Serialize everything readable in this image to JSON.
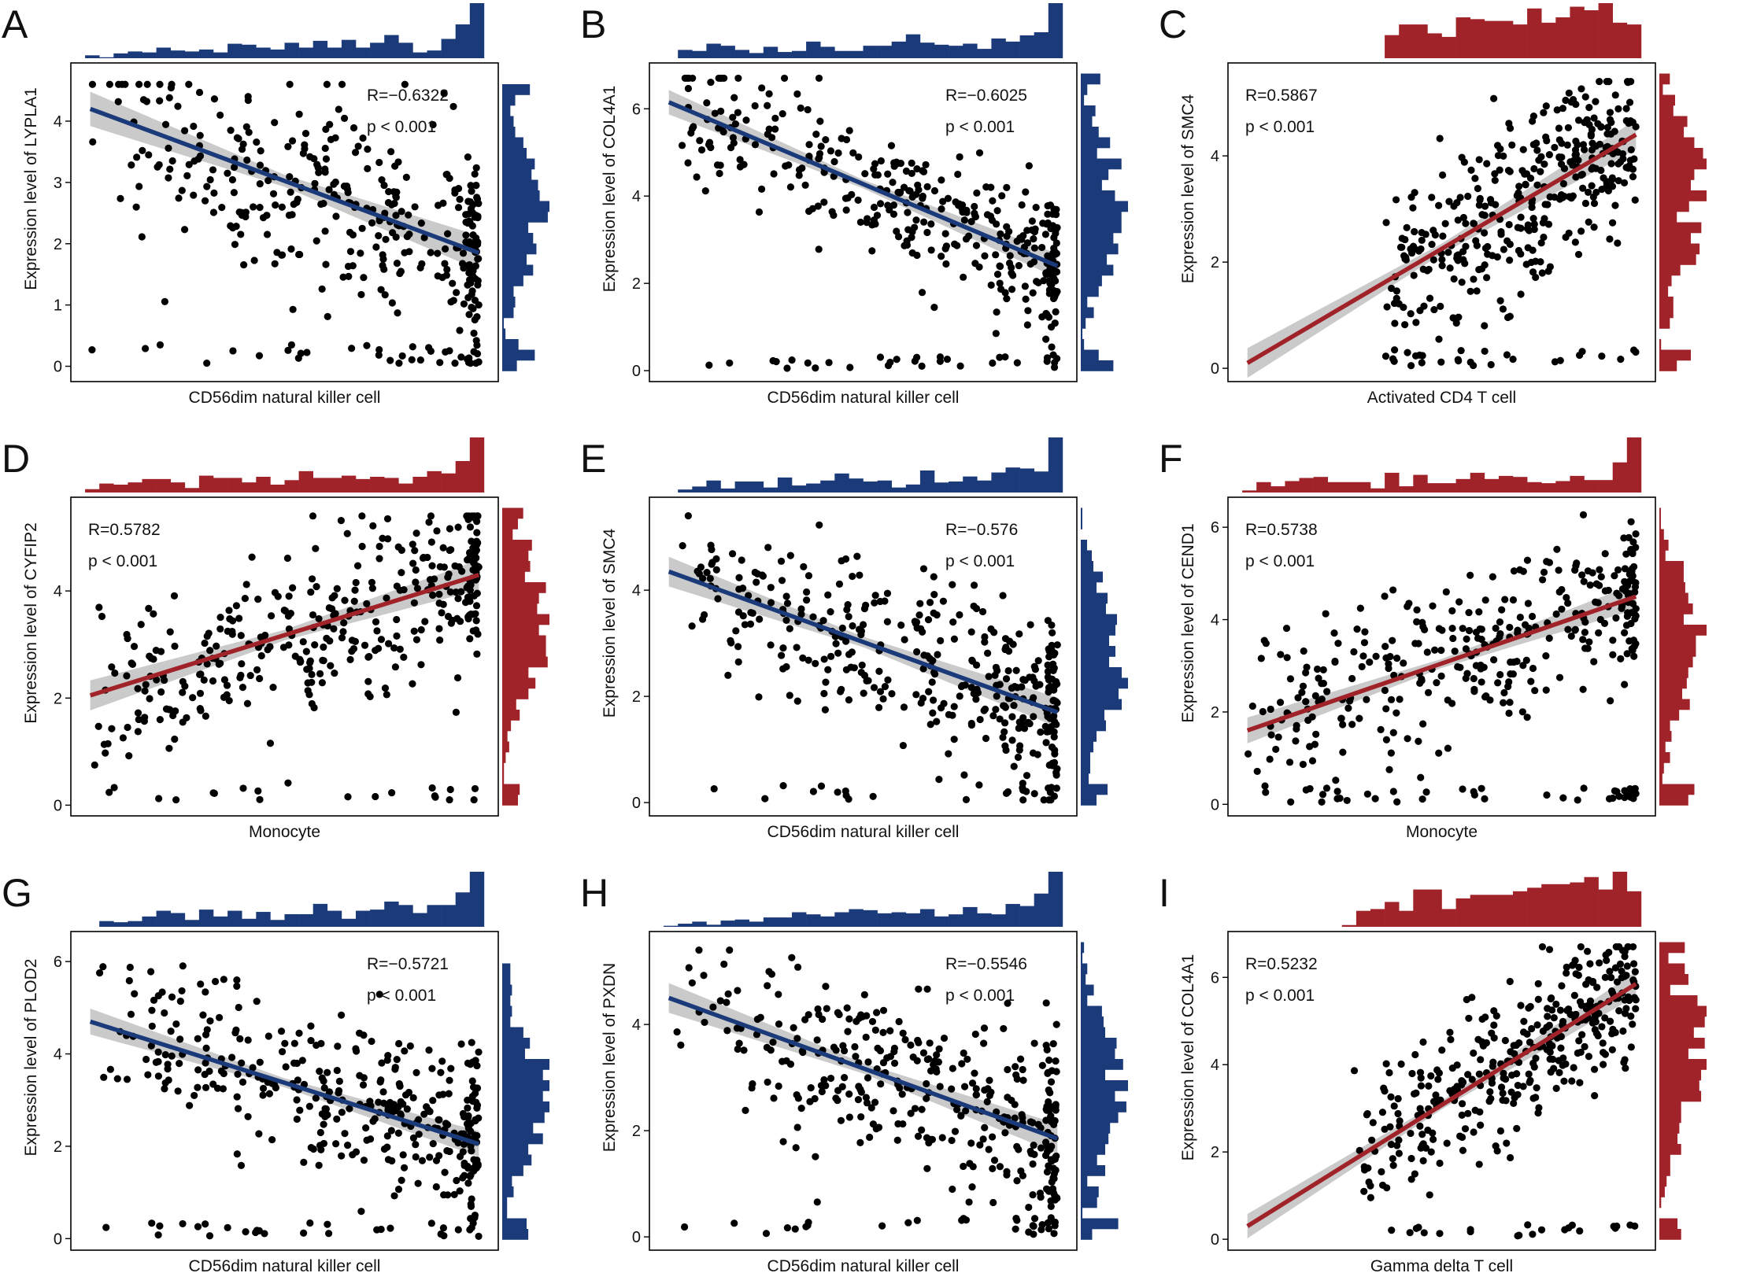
{
  "colors": {
    "blue": "#1b3a7a",
    "red": "#a1232a",
    "point": "#000000",
    "band": "#b8b8b8"
  },
  "chart_data": [
    {
      "type": "scatter",
      "panel": "A",
      "ylabel": "Expression level of LYPLA1",
      "xlabel": "CD56dim natural killer cell",
      "R": "R=−0.6322",
      "p": "p < 0.001",
      "stat_position": "top-right",
      "color": "blue",
      "slope": "negative",
      "yticks": [
        0,
        1,
        2,
        3,
        4
      ],
      "ylim": [
        -0.25,
        4.95
      ],
      "xlim": [
        -0.05,
        1.05
      ],
      "fit": [
        [
          0,
          4.2
        ],
        [
          1,
          1.85
        ]
      ],
      "n": 380,
      "seed": 11
    },
    {
      "type": "scatter",
      "panel": "B",
      "ylabel": "Expression level of COL4A1",
      "xlabel": "CD56dim natural killer cell",
      "R": "R=−0.6025",
      "p": "p < 0.001",
      "stat_position": "top-right",
      "color": "blue",
      "slope": "negative",
      "yticks": [
        0,
        2,
        4,
        6
      ],
      "ylim": [
        -0.25,
        7.05
      ],
      "xlim": [
        -0.05,
        1.05
      ],
      "fit": [
        [
          0,
          6.15
        ],
        [
          1,
          2.4
        ]
      ],
      "n": 380,
      "seed": 23
    },
    {
      "type": "scatter",
      "panel": "C",
      "ylabel": "Expression level of SMC4",
      "xlabel": "Activated CD4 T cell",
      "R": "R=0.5867",
      "p": "p < 0.001",
      "stat_position": "top-left",
      "color": "red",
      "slope": "positive",
      "yticks": [
        0,
        2,
        4
      ],
      "ylim": [
        -0.25,
        5.75
      ],
      "xlim": [
        -0.05,
        1.05
      ],
      "fit": [
        [
          0,
          0.1
        ],
        [
          1,
          4.4
        ]
      ],
      "n": 380,
      "seed": 37
    },
    {
      "type": "scatter",
      "panel": "D",
      "ylabel": "Expression level of CYFIP2",
      "xlabel": "Monocyte",
      "R": "R=0.5782",
      "p": "p < 0.001",
      "stat_position": "top-left",
      "color": "red",
      "slope": "positive",
      "yticks": [
        0,
        2,
        4
      ],
      "ylim": [
        -0.2,
        5.75
      ],
      "xlim": [
        -0.05,
        1.05
      ],
      "fit": [
        [
          0,
          2.05
        ],
        [
          1,
          4.3
        ]
      ],
      "n": 380,
      "seed": 41
    },
    {
      "type": "scatter",
      "panel": "E",
      "ylabel": "Expression level of SMC4",
      "xlabel": "CD56dim natural killer cell",
      "R": "R=−0.576",
      "p": "p < 0.001",
      "stat_position": "top-right",
      "color": "blue",
      "slope": "negative",
      "yticks": [
        0,
        2,
        4
      ],
      "ylim": [
        -0.25,
        5.75
      ],
      "xlim": [
        -0.05,
        1.05
      ],
      "fit": [
        [
          0,
          4.35
        ],
        [
          1,
          1.7
        ]
      ],
      "n": 380,
      "seed": 53
    },
    {
      "type": "scatter",
      "panel": "F",
      "ylabel": "Expression level of CEND1",
      "xlabel": "Monocyte",
      "R": "R=0.5738",
      "p": "p < 0.001",
      "stat_position": "top-left",
      "color": "red",
      "slope": "positive",
      "yticks": [
        0,
        2,
        4,
        6
      ],
      "ylim": [
        -0.25,
        6.65
      ],
      "xlim": [
        -0.05,
        1.05
      ],
      "fit": [
        [
          0,
          1.6
        ],
        [
          1,
          4.5
        ]
      ],
      "n": 380,
      "seed": 67
    },
    {
      "type": "scatter",
      "panel": "G",
      "ylabel": "Expression level of PLOD2",
      "xlabel": "CD56dim natural killer cell",
      "R": "R=−0.5721",
      "p": "p < 0.001",
      "stat_position": "top-right",
      "color": "blue",
      "slope": "negative",
      "yticks": [
        0,
        2,
        4,
        6
      ],
      "ylim": [
        -0.25,
        6.65
      ],
      "xlim": [
        -0.05,
        1.05
      ],
      "fit": [
        [
          0,
          4.7
        ],
        [
          1,
          2.05
        ]
      ],
      "n": 380,
      "seed": 71
    },
    {
      "type": "scatter",
      "panel": "H",
      "ylabel": "Expression level of PXDN",
      "xlabel": "CD56dim natural killer cell",
      "R": "R=−0.5546",
      "p": "p < 0.001",
      "stat_position": "top-right",
      "color": "blue",
      "slope": "negative",
      "yticks": [
        0,
        2,
        4
      ],
      "ylim": [
        -0.25,
        5.75
      ],
      "xlim": [
        -0.05,
        1.05
      ],
      "fit": [
        [
          0,
          4.5
        ],
        [
          1,
          1.85
        ]
      ],
      "n": 380,
      "seed": 83
    },
    {
      "type": "scatter",
      "panel": "I",
      "ylabel": "Expression level of COL4A1",
      "xlabel": "Gamma delta T cell",
      "R": "R=0.5232",
      "p": "p < 0.001",
      "stat_position": "top-left",
      "color": "red",
      "slope": "positive",
      "yticks": [
        0,
        2,
        4,
        6
      ],
      "ylim": [
        -0.25,
        7.05
      ],
      "xlim": [
        -0.05,
        1.05
      ],
      "fit": [
        [
          0,
          0.3
        ],
        [
          1,
          5.85
        ]
      ],
      "n": 380,
      "seed": 97
    }
  ]
}
